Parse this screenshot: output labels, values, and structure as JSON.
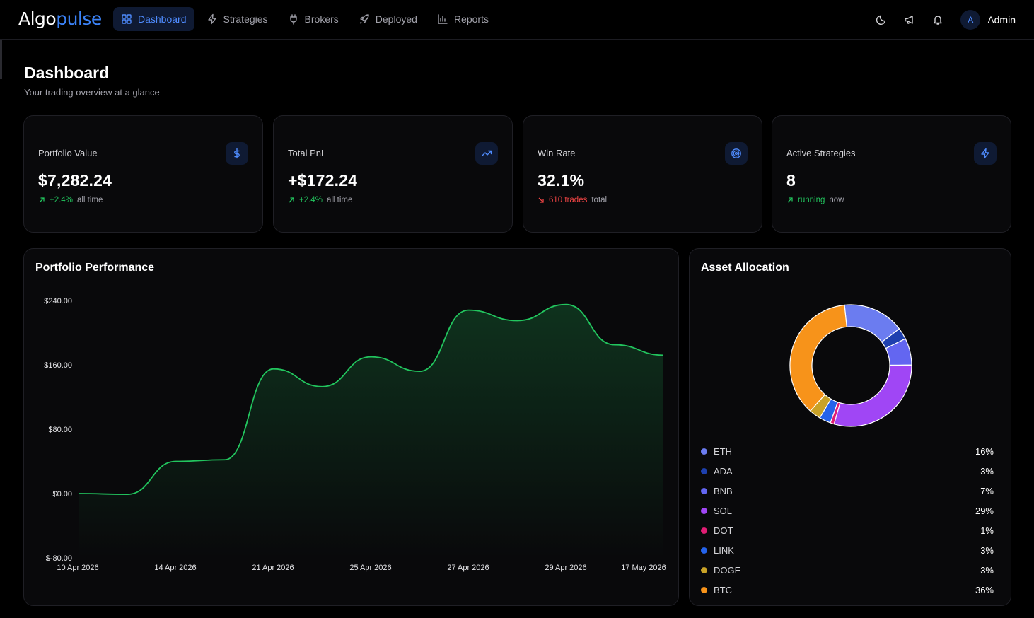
{
  "brand": {
    "name_part1": "Algo",
    "name_part2": "pulse"
  },
  "nav": [
    {
      "label": "Dashboard",
      "icon": "grid-icon",
      "active": true
    },
    {
      "label": "Strategies",
      "icon": "bolt-icon",
      "active": false
    },
    {
      "label": "Brokers",
      "icon": "plug-icon",
      "active": false
    },
    {
      "label": "Deployed",
      "icon": "rocket-icon",
      "active": false
    },
    {
      "label": "Reports",
      "icon": "bar-chart-icon",
      "active": false
    }
  ],
  "header_actions": {
    "theme_icon": "moon-icon",
    "announce_icon": "megaphone-icon",
    "notify_icon": "bell-icon"
  },
  "user": {
    "initial": "A",
    "name": "Admin"
  },
  "page": {
    "title": "Dashboard",
    "subtitle": "Your trading overview at a glance"
  },
  "stats": [
    {
      "label": "Portfolio Value",
      "value": "$7,282.24",
      "trend": "+2.4%",
      "note": "all time",
      "direction": "up",
      "icon": "dollar-icon"
    },
    {
      "label": "Total PnL",
      "value": "+$172.24",
      "trend": "+2.4%",
      "note": "all time",
      "direction": "up",
      "icon": "trending-up-icon"
    },
    {
      "label": "Win Rate",
      "value": "32.1%",
      "trend": "610 trades",
      "note": "total",
      "direction": "down",
      "icon": "target-icon"
    },
    {
      "label": "Active Strategies",
      "value": "8",
      "trend": "running",
      "note": "now",
      "direction": "up",
      "icon": "bolt-icon"
    }
  ],
  "performance": {
    "title": "Portfolio Performance"
  },
  "allocation": {
    "title": "Asset Allocation"
  },
  "chart_data": [
    {
      "type": "area",
      "title": "Portfolio Performance",
      "x_tick_labels": [
        "10 Apr 2026",
        "14 Apr 2026",
        "21 Apr 2026",
        "25 Apr 2026",
        "27 Apr 2026",
        "29 Apr 2026",
        "17 May 2026"
      ],
      "y_tick_labels": [
        "$240.00",
        "$160.00",
        "$80.00",
        "$0.00",
        "$-80.00"
      ],
      "y_ticks": [
        240,
        160,
        80,
        0,
        -80
      ],
      "ylim": [
        -80,
        240
      ],
      "series": [
        {
          "values": [
            0,
            -1,
            40,
            42,
            155,
            133,
            170,
            152,
            228,
            215,
            235,
            185,
            172
          ]
        }
      ],
      "color": "#22c55e",
      "grid": false
    },
    {
      "type": "pie",
      "title": "Asset Allocation",
      "donut": true,
      "slices": [
        {
          "label": "ETH",
          "value": 16,
          "display": "16%",
          "color": "#6b7cf0"
        },
        {
          "label": "ADA",
          "value": 3,
          "display": "3%",
          "color": "#1e40af"
        },
        {
          "label": "BNB",
          "value": 7,
          "display": "7%",
          "color": "#6366f1"
        },
        {
          "label": "SOL",
          "value": 29,
          "display": "29%",
          "color": "#a046f5"
        },
        {
          "label": "DOT",
          "value": 1,
          "display": "1%",
          "color": "#e11d74"
        },
        {
          "label": "LINK",
          "value": 3,
          "display": "3%",
          "color": "#2563eb"
        },
        {
          "label": "DOGE",
          "value": 3,
          "display": "3%",
          "color": "#c9a227"
        },
        {
          "label": "BTC",
          "value": 36,
          "display": "36%",
          "color": "#f7931a"
        }
      ],
      "legend_order": [
        "ETH",
        "ADA",
        "BNB",
        "SOL",
        "DOT",
        "LINK",
        "DOGE",
        "BTC"
      ]
    }
  ]
}
